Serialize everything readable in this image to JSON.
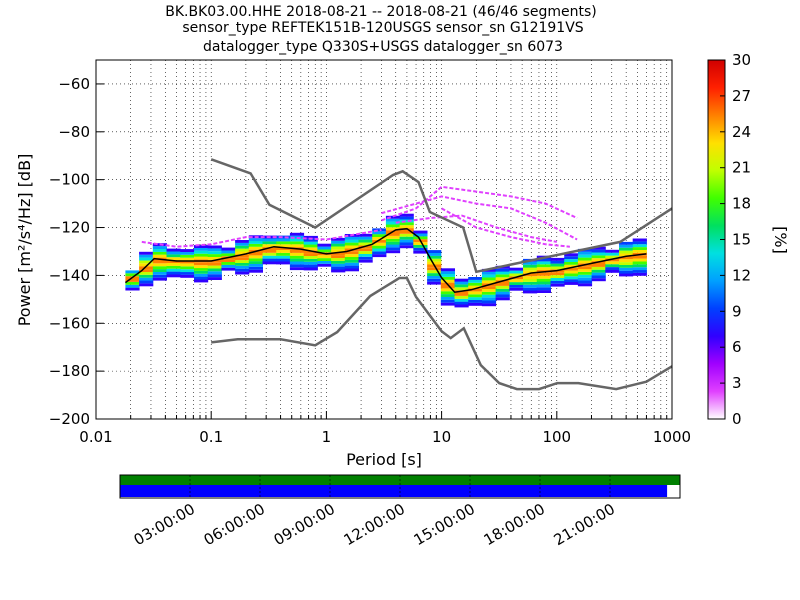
{
  "title": {
    "line1": "BK.BK03.00.HHE   2018-08-21 -- 2018-08-21  (46/46 segments)",
    "line2": "sensor_type REFTEK151B-120USGS sensor_sn G12191VS",
    "line3": "datalogger_type Q330S+USGS datalogger_sn 6073"
  },
  "chart_data": {
    "type": "heatmap",
    "xlabel": "Period [s]",
    "ylabel": "Power [m²/s⁴/Hz] [dB]",
    "xscale": "log",
    "xlim": [
      0.01,
      1000
    ],
    "ylim": [
      -200,
      -50
    ],
    "x_tick_labels": [
      "0.01",
      "0.1",
      "1",
      "10",
      "100",
      "1000"
    ],
    "y_ticks": [
      -200,
      -180,
      -160,
      -140,
      -120,
      -100,
      -80,
      -60
    ],
    "grid": true,
    "colorbar": {
      "label": "[%]",
      "range": [
        0,
        30
      ],
      "ticks": [
        0,
        3,
        6,
        9,
        12,
        15,
        18,
        21,
        24,
        27,
        30
      ],
      "colormap": [
        "#ffffff",
        "#e040ff",
        "#a000ff",
        "#3000ff",
        "#0040ff",
        "#00a0ff",
        "#00e0e0",
        "#00e060",
        "#40ff00",
        "#c0ff00",
        "#ffe000",
        "#ff8000",
        "#ff2000",
        "#d00000"
      ]
    },
    "noise_models": [
      {
        "name": "NHNM",
        "points": [
          [
            0.1,
            -91.5
          ],
          [
            0.22,
            -97.4
          ],
          [
            0.32,
            -110.5
          ],
          [
            0.8,
            -120
          ],
          [
            3.8,
            -98
          ],
          [
            4.6,
            -96.5
          ],
          [
            6.3,
            -101
          ],
          [
            7.9,
            -113.5
          ],
          [
            15.4,
            -120
          ],
          [
            20,
            -138.5
          ],
          [
            354.8,
            -126
          ],
          [
            1000,
            -112
          ]
        ]
      },
      {
        "name": "NLNM",
        "points": [
          [
            0.1,
            -168
          ],
          [
            0.17,
            -166.7
          ],
          [
            0.4,
            -166.7
          ],
          [
            0.8,
            -169.2
          ],
          [
            1.24,
            -163.7
          ],
          [
            2.4,
            -148.6
          ],
          [
            4.3,
            -141.1
          ],
          [
            5.0,
            -141.1
          ],
          [
            6.0,
            -149
          ],
          [
            10.0,
            -163.3
          ],
          [
            12.0,
            -166.2
          ],
          [
            15.6,
            -162.1
          ],
          [
            21.9,
            -177.5
          ],
          [
            31.6,
            -185
          ],
          [
            45,
            -187.5
          ],
          [
            70,
            -187.5
          ],
          [
            101,
            -185
          ],
          [
            154,
            -185
          ],
          [
            328,
            -187.5
          ],
          [
            600,
            -184.4
          ],
          [
            1000,
            -178
          ]
        ]
      }
    ],
    "mean_curve": [
      [
        0.018,
        -143
      ],
      [
        0.025,
        -138
      ],
      [
        0.032,
        -133
      ],
      [
        0.05,
        -134
      ],
      [
        0.1,
        -134
      ],
      [
        0.2,
        -131
      ],
      [
        0.35,
        -128
      ],
      [
        0.6,
        -129
      ],
      [
        1,
        -131
      ],
      [
        1.5,
        -130
      ],
      [
        2.5,
        -127
      ],
      [
        4,
        -121
      ],
      [
        5,
        -120.5
      ],
      [
        6.3,
        -124
      ],
      [
        8,
        -133
      ],
      [
        10,
        -141
      ],
      [
        13,
        -147
      ],
      [
        18,
        -146
      ],
      [
        30,
        -143
      ],
      [
        60,
        -139
      ],
      [
        100,
        -138
      ],
      [
        200,
        -135
      ],
      [
        400,
        -132
      ],
      [
        600,
        -131
      ]
    ],
    "outlier_curves": [
      [
        [
          0.025,
          -126
        ],
        [
          0.05,
          -128
        ],
        [
          0.1,
          -127
        ],
        [
          0.2,
          -124
        ],
        [
          0.4,
          -124
        ],
        [
          1,
          -125
        ],
        [
          3,
          -121
        ]
      ],
      [
        [
          3,
          -117
        ],
        [
          6,
          -112
        ],
        [
          10,
          -103
        ],
        [
          20,
          -105
        ],
        [
          40,
          -107
        ],
        [
          80,
          -110
        ],
        [
          150,
          -116
        ]
      ],
      [
        [
          3,
          -114
        ],
        [
          6,
          -110
        ],
        [
          10,
          -107
        ],
        [
          20,
          -110
        ],
        [
          40,
          -112
        ],
        [
          80,
          -118
        ],
        [
          150,
          -125
        ]
      ],
      [
        [
          4,
          -118
        ],
        [
          8,
          -116
        ],
        [
          15,
          -115
        ],
        [
          30,
          -120
        ],
        [
          60,
          -124
        ],
        [
          100,
          -126
        ]
      ],
      [
        [
          10,
          -112
        ],
        [
          20,
          -120
        ],
        [
          40,
          -124
        ],
        [
          80,
          -127
        ],
        [
          130,
          -128
        ]
      ]
    ],
    "ppsd_band": {
      "columns": 38,
      "spread_db": 6
    }
  },
  "timeline": {
    "labels": [
      "03:00:00",
      "06:00:00",
      "09:00:00",
      "12:00:00",
      "15:00:00",
      "18:00:00",
      "21:00:00"
    ],
    "data_coverage_fraction": 0.977,
    "colors": {
      "available": "#008000",
      "used": "#0000ff"
    }
  }
}
